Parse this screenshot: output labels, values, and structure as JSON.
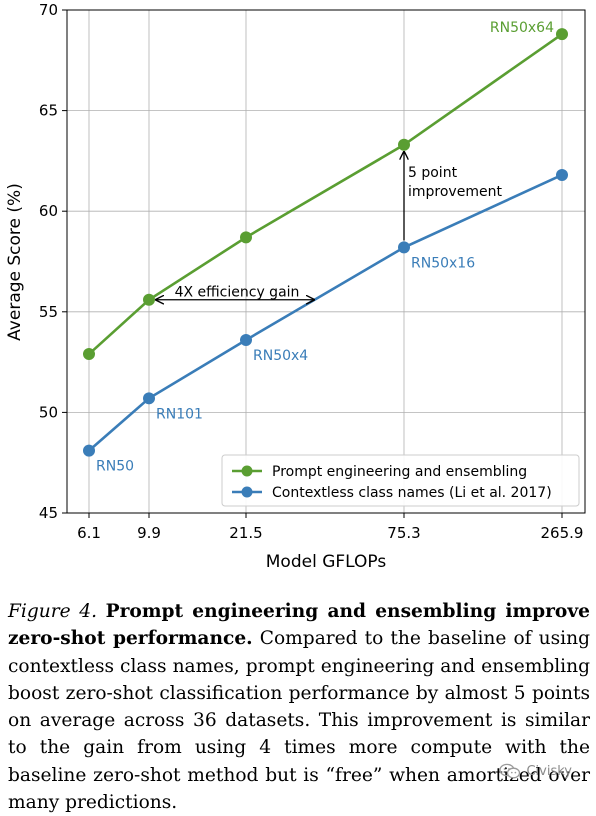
{
  "chart_data": {
    "type": "line",
    "categories": [
      "6.1",
      "9.9",
      "21.5",
      "75.3",
      "265.9"
    ],
    "xlabel": "Model GFLOPs",
    "ylabel": "Average Score (%)",
    "ylim": [
      45,
      70
    ],
    "yticks": [
      "45",
      "50",
      "55",
      "60",
      "65",
      "70"
    ],
    "grid": true,
    "legend_position": "lower-right",
    "series": [
      {
        "name": "Prompt engineering and ensembling",
        "color": "#5a9e32",
        "values": [
          52.9,
          55.6,
          58.7,
          63.3,
          68.8
        ]
      },
      {
        "name": "Contextless class names (Li et al. 2017)",
        "color": "#3a7db8",
        "values": [
          48.1,
          50.7,
          53.6,
          58.2,
          61.8
        ]
      }
    ],
    "point_labels": [
      {
        "text": "RN50",
        "series": 1,
        "index": 0,
        "color": "#3a7db8"
      },
      {
        "text": "RN101",
        "series": 1,
        "index": 1,
        "color": "#3a7db8"
      },
      {
        "text": "RN50x4",
        "series": 1,
        "index": 2,
        "color": "#3a7db8"
      },
      {
        "text": "RN50x16",
        "series": 1,
        "index": 3,
        "color": "#3a7db8"
      },
      {
        "text": "RN50x64",
        "series": 0,
        "index": 4,
        "color": "#5a9e32"
      }
    ],
    "annotations": {
      "efficiency": "4X efficiency gain",
      "improvement_line1": "5 point",
      "improvement_line2": "improvement"
    }
  },
  "caption": {
    "figure_label": "Figure 4.",
    "bold_text": "Prompt engineering and ensembling improve zero-shot performance.",
    "body_text": "Compared to the baseline of using contextless class names, prompt engineering and ensembling boost zero-shot classification performance by almost 5 points on average across 36 datasets. This improvement is similar to the gain from using 4 times more compute with the baseline zero-shot method but is “free” when amortized over many predictions."
  },
  "watermark": {
    "text": "Civisky",
    "icon": "wechat-icon"
  }
}
